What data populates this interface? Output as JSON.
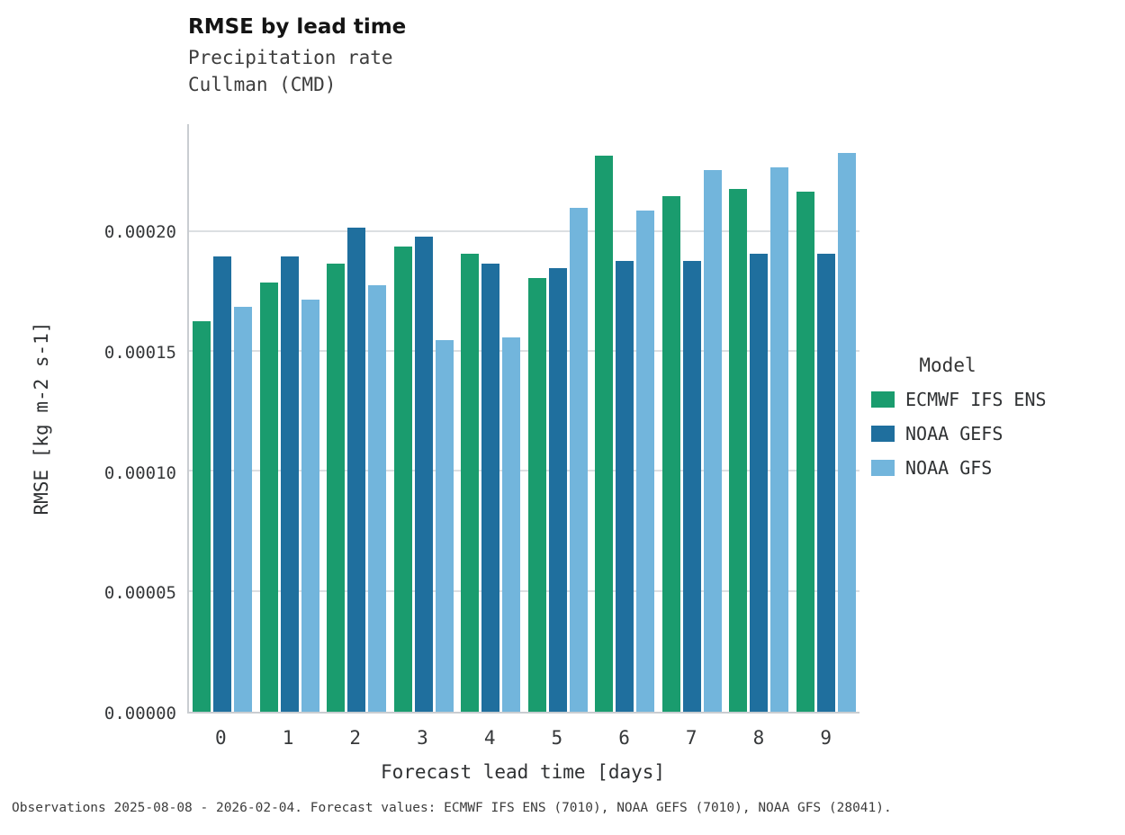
{
  "title": "RMSE by lead time",
  "subtitle_line1": "Precipitation rate",
  "subtitle_line2": "Cullman (CMD)",
  "footer": "Observations 2025-08-08 - 2026-02-04. Forecast values: ECMWF IFS ENS (7010), NOAA GEFS (7010), NOAA GFS (28041).",
  "chart_data": {
    "type": "bar",
    "title": "RMSE by lead time",
    "subtitle": [
      "Precipitation rate",
      "Cullman (CMD)"
    ],
    "xlabel": "Forecast lead time [days]",
    "ylabel": "RMSE [kg m-2 s-1]",
    "categories": [
      "0",
      "1",
      "2",
      "3",
      "4",
      "5",
      "6",
      "7",
      "8",
      "9"
    ],
    "series": [
      {
        "name": "ECMWF IFS ENS",
        "color": "#1a9c6e",
        "values": [
          0.000163,
          0.000179,
          0.000187,
          0.000194,
          0.000191,
          0.000181,
          0.000232,
          0.000215,
          0.000218,
          0.000217
        ]
      },
      {
        "name": "NOAA GEFS",
        "color": "#1f6f9e",
        "values": [
          0.00019,
          0.00019,
          0.000202,
          0.000198,
          0.000187,
          0.000185,
          0.000188,
          0.000188,
          0.000191,
          0.000191
        ]
      },
      {
        "name": "NOAA GFS",
        "color": "#72b5dc",
        "values": [
          0.000169,
          0.000172,
          0.000178,
          0.000155,
          0.000156,
          0.00021,
          0.000209,
          0.000226,
          0.000227,
          0.000233
        ]
      }
    ],
    "yticks": [
      0.0,
      5e-05,
      0.0001,
      0.00015,
      0.0002
    ],
    "ytick_labels": [
      "0.00000",
      "0.00005",
      "0.00010",
      "0.00015",
      "0.00020"
    ],
    "ylim": [
      0,
      0.000245
    ],
    "grid": true,
    "legend_title": "Model",
    "legend_position": "right"
  }
}
